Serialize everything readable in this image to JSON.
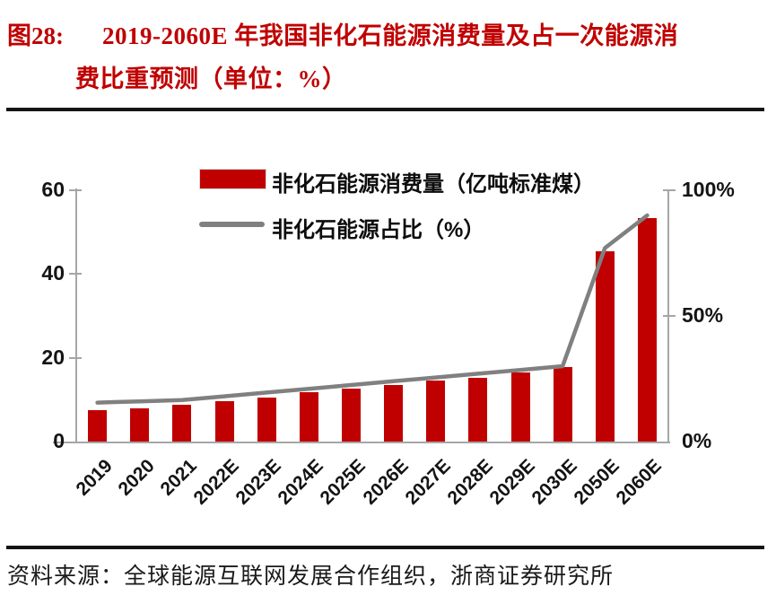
{
  "figure": {
    "label": "图28:",
    "title_line1": "2019-2060E 年我国非化石能源消费量及占一次能源消",
    "title_line2": "费比重预测（单位：%）"
  },
  "source": "资料来源：全球能源互联网发展合作组织，浙商证券研究所",
  "colors": {
    "bar": "#C00000",
    "line": "#808080",
    "axis": "#A6A6A6",
    "title": "#C00000",
    "text": "#141414"
  },
  "chart_data": {
    "type": "bar",
    "subtype": "bar+line combo, dual axis",
    "title": "2019-2060E 年我国非化石能源消费量及占一次能源消费比重预测（单位：%）",
    "categories": [
      "2019",
      "2020",
      "2021",
      "2022E",
      "2023E",
      "2024E",
      "2025E",
      "2026E",
      "2027E",
      "2028E",
      "2029E",
      "2030E",
      "2050E",
      "2060E"
    ],
    "series": [
      {
        "name": "非化石能源消费量（亿吨标准煤）",
        "type": "bar",
        "axis": "left",
        "color": "#C00000",
        "values": [
          7.5,
          8.0,
          8.7,
          9.6,
          10.5,
          11.7,
          12.7,
          13.6,
          14.5,
          15.3,
          16.4,
          17.7,
          45.4,
          53.3
        ]
      },
      {
        "name": "非化石能源占比（%）",
        "type": "line",
        "axis": "right",
        "color": "#808080",
        "values": [
          15.5,
          16.0,
          16.5,
          18.0,
          19.5,
          21.0,
          22.5,
          24.0,
          25.5,
          27.0,
          28.5,
          30.0,
          77.0,
          90.0
        ]
      }
    ],
    "left_axis": {
      "min": 0,
      "max": 60,
      "ticks": [
        0,
        20,
        40,
        60
      ]
    },
    "right_axis": {
      "min": 0,
      "max": 100,
      "ticks": [
        0,
        50,
        100
      ],
      "tick_labels": [
        "0%",
        "50%",
        "100%"
      ]
    },
    "legend_position": "top-center",
    "grid": false,
    "xlabel_rotation": -45
  }
}
